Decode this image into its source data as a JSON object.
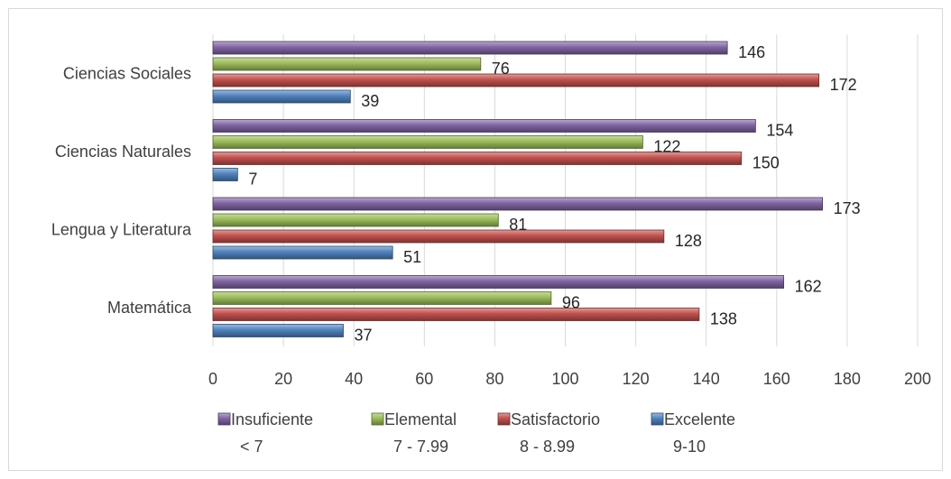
{
  "chart_data": {
    "type": "bar",
    "orientation": "horizontal",
    "categories": [
      "Matemática",
      "Lengua y Literatura",
      "Ciencias Naturales",
      "Ciencias Sociales"
    ],
    "series": [
      {
        "name": "Excelente",
        "sub": "9-10",
        "color": "#4f81bd",
        "values": [
          37,
          51,
          7,
          39
        ]
      },
      {
        "name": "Satisfactorio",
        "sub": "8 - 8.99",
        "color": "#c0504d",
        "values": [
          138,
          128,
          150,
          172
        ]
      },
      {
        "name": "Elemental",
        "sub": "7 - 7.99",
        "color": "#9bbb59",
        "values": [
          96,
          81,
          122,
          76
        ]
      },
      {
        "name": "Insuficiente",
        "sub": "< 7",
        "color": "#8064a2",
        "values": [
          162,
          173,
          154,
          146
        ]
      }
    ],
    "xlim": [
      0,
      200
    ],
    "xticks": [
      0,
      20,
      40,
      60,
      80,
      100,
      120,
      140,
      160,
      180,
      200
    ],
    "grid": "vertical",
    "legend_position": "bottom",
    "legend_order": [
      "Insuficiente",
      "Elemental",
      "Satisfactorio",
      "Excelente"
    ]
  }
}
